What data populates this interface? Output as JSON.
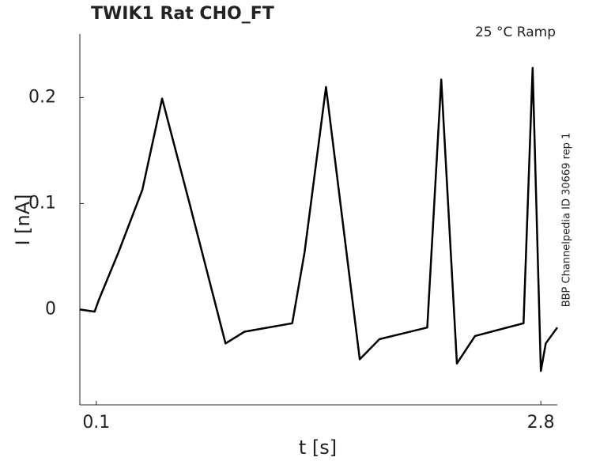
{
  "chart_data": {
    "type": "line",
    "title": "TWIK1  Rat  CHO_FT",
    "annotation": "25 °C  Ramp",
    "side_note": "BBP Channelpedia ID 30669 rep 1",
    "x_label": "t [s]",
    "y_label": "I [nA]",
    "x": [
      0,
      0.09,
      0.115,
      0.235,
      0.38,
      0.5,
      0.67,
      0.885,
      1.0,
      1.29,
      1.365,
      1.495,
      1.7,
      1.82,
      2.11,
      2.195,
      2.29,
      2.4,
      2.695,
      2.75,
      2.8,
      2.83,
      2.9
    ],
    "series": [
      {
        "name": "I",
        "color": "#000000",
        "values": [
          0,
          -0.002,
          0.009,
          0.054,
          0.113,
          0.199,
          0.098,
          -0.032,
          -0.021,
          -0.013,
          0.054,
          0.21,
          -0.047,
          -0.028,
          -0.017,
          0.217,
          -0.051,
          -0.025,
          -0.013,
          0.228,
          -0.058,
          -0.032,
          -0.017
        ]
      }
    ],
    "xlim": [
      0,
      2.9
    ],
    "ylim": [
      -0.09,
      0.26
    ],
    "xticks": [
      0.1,
      2.8
    ],
    "yticks": [
      0,
      0.1,
      0.2
    ],
    "grid": false
  }
}
